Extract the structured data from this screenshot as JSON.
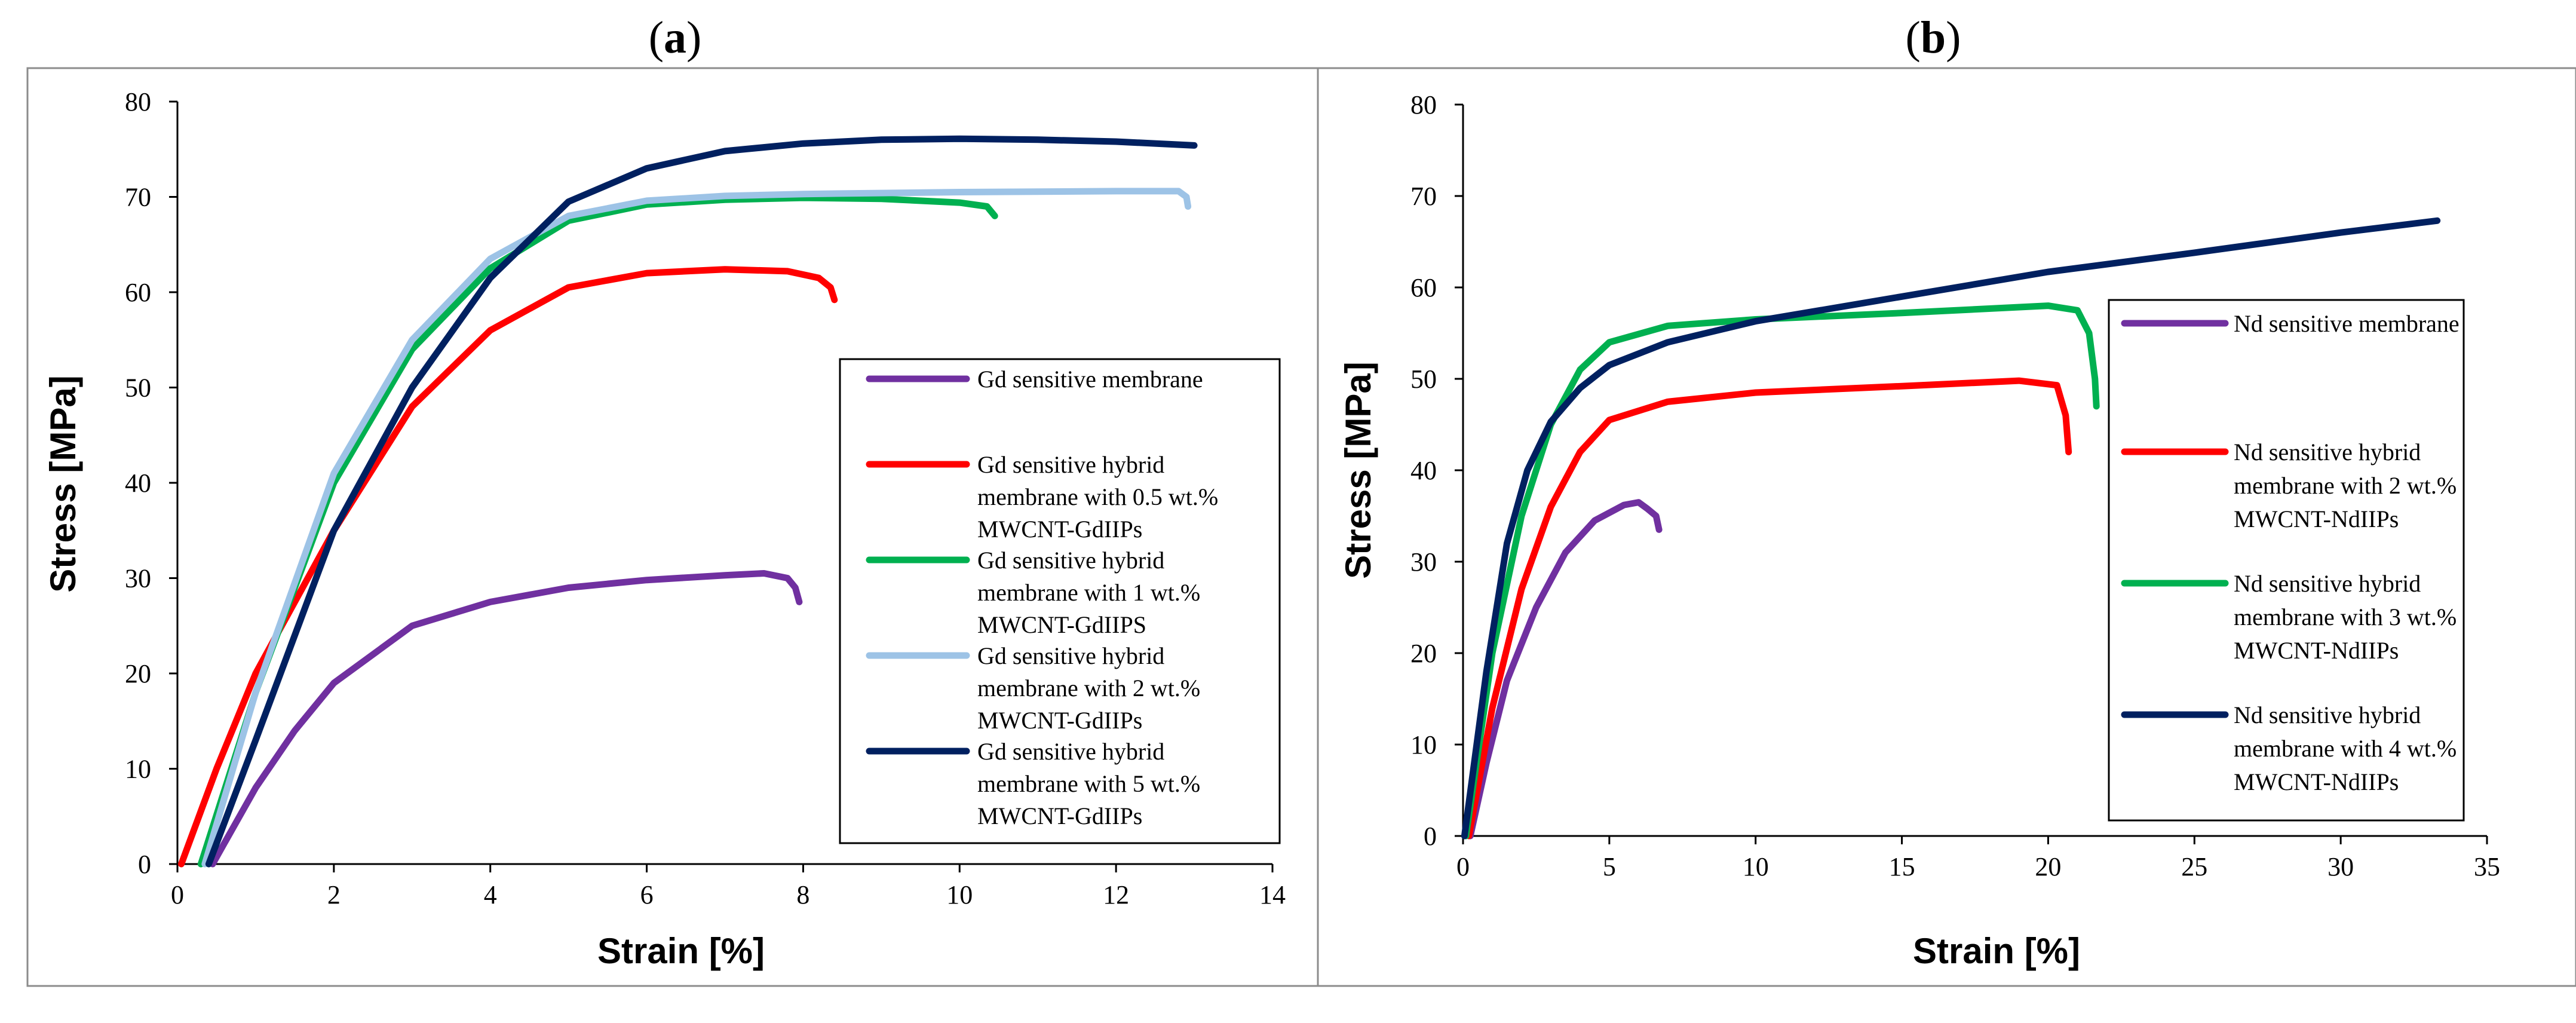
{
  "chart_data": [
    {
      "panel_label": "a",
      "type": "line",
      "xlabel": "Strain [%]",
      "ylabel": "Stress  [MPa]",
      "xlim": [
        0,
        14
      ],
      "ylim": [
        0,
        80
      ],
      "xticks": [
        0,
        2,
        4,
        6,
        8,
        10,
        12,
        14
      ],
      "yticks": [
        0,
        10,
        20,
        30,
        40,
        50,
        60,
        70,
        80
      ],
      "legend_position": "center-right",
      "series": [
        {
          "name": "Gd sensitive membrane",
          "legend_lines": [
            "Gd sensitive membrane"
          ],
          "color": "#7030a0",
          "x": [
            0.45,
            1,
            1.5,
            2,
            3,
            4,
            5,
            6,
            7,
            7.5,
            7.8,
            7.9,
            7.95
          ],
          "y": [
            0,
            8,
            14,
            19,
            25,
            27.5,
            29,
            29.8,
            30.3,
            30.5,
            30,
            29,
            27.5
          ]
        },
        {
          "name": "Gd sensitive hybrid membrane with 0.5 wt.% MWCNT-GdIIPs",
          "legend_lines": [
            "Gd sensitive hybrid",
            "membrane with 0.5 wt.%",
            "MWCNT-GdIIPs"
          ],
          "color": "#ff0000",
          "x": [
            0.05,
            0.5,
            1,
            2,
            3,
            4,
            5,
            6,
            7,
            7.8,
            8.2,
            8.35,
            8.4
          ],
          "y": [
            0,
            10,
            20,
            35,
            48,
            56,
            60.5,
            62,
            62.4,
            62.2,
            61.5,
            60.5,
            59.2
          ]
        },
        {
          "name": "Gd sensitive hybrid membrane with 1 wt.% MWCNT-GdIIPS",
          "legend_lines": [
            "Gd sensitive hybrid",
            "membrane with 1 wt.%",
            "MWCNT-GdIIPS"
          ],
          "color": "#00b050",
          "x": [
            0.3,
            1,
            2,
            3,
            4,
            5,
            6,
            7,
            8,
            9,
            10,
            10.35,
            10.45
          ],
          "y": [
            0,
            18,
            40,
            54,
            62.5,
            67.5,
            69.2,
            69.7,
            69.9,
            69.8,
            69.4,
            69,
            68
          ]
        },
        {
          "name": "Gd sensitive hybrid membrane with 2 wt.% MWCNT-GdIIPs",
          "legend_lines": [
            "Gd sensitive hybrid",
            "membrane with 2 wt.%",
            "MWCNT-GdIIPs"
          ],
          "color": "#9dc3e6",
          "x": [
            0.35,
            1,
            2,
            3,
            4,
            5,
            6,
            7,
            8,
            10,
            12,
            12.8,
            12.9,
            12.92
          ],
          "y": [
            0,
            18,
            41,
            55,
            63.5,
            68,
            69.6,
            70.1,
            70.3,
            70.5,
            70.6,
            70.6,
            70,
            69
          ]
        },
        {
          "name": "Gd sensitive hybrid membrane with 5 wt.% MWCNT-GdIIPs",
          "legend_lines": [
            "Gd sensitive hybrid",
            "membrane with 5 wt.%",
            "MWCNT-GdIIPs"
          ],
          "color": "#002060",
          "x": [
            0.4,
            1,
            2,
            3,
            4,
            5,
            6,
            7,
            8,
            9,
            10,
            11,
            12,
            13
          ],
          "y": [
            0,
            13,
            35,
            50,
            61.5,
            69.5,
            73,
            74.8,
            75.6,
            76,
            76.1,
            76,
            75.8,
            75.4
          ]
        }
      ]
    },
    {
      "panel_label": "b",
      "type": "line",
      "xlabel": "Strain [%]",
      "ylabel": "Stress  [MPa]",
      "xlim": [
        0,
        35
      ],
      "ylim": [
        0,
        80
      ],
      "xticks": [
        0,
        5,
        10,
        15,
        20,
        25,
        30,
        35
      ],
      "yticks": [
        0,
        10,
        20,
        30,
        40,
        50,
        60,
        70,
        80
      ],
      "legend_position": "center-right",
      "series": [
        {
          "name": "Nd sensitive membrane",
          "legend_lines": [
            "Nd sensitive membrane"
          ],
          "color": "#7030a0",
          "x": [
            0.25,
            0.8,
            1.5,
            2.5,
            3.5,
            4.5,
            5.5,
            6,
            6.3,
            6.6,
            6.7
          ],
          "y": [
            0,
            8,
            17,
            25,
            31,
            34.5,
            36.2,
            36.5,
            35.8,
            35,
            33.5
          ]
        },
        {
          "name": "Nd sensitive hybrid membrane with 2 wt.% MWCNT-NdIIPs",
          "legend_lines": [
            "Nd sensitive hybrid",
            "membrane with 2 wt.%",
            "MWCNT-NdIIPs"
          ],
          "color": "#ff0000",
          "x": [
            0.2,
            1,
            2,
            3,
            4,
            5,
            7,
            10,
            15,
            19,
            20.3,
            20.6,
            20.7
          ],
          "y": [
            0,
            14,
            27,
            36,
            42,
            45.5,
            47.5,
            48.5,
            49.2,
            49.8,
            49.3,
            46,
            42
          ]
        },
        {
          "name": "Nd sensitive hybrid membrane with 3 wt.% MWCNT-NdIIPs",
          "legend_lines": [
            "Nd sensitive hybrid",
            "membrane with 3 wt.%",
            "MWCNT-NdIIPs"
          ],
          "color": "#00b050",
          "x": [
            0.1,
            1,
            2,
            3,
            4,
            5,
            7,
            10,
            15,
            20,
            21,
            21.4,
            21.6,
            21.65
          ],
          "y": [
            0,
            20,
            35,
            45,
            51,
            54,
            55.8,
            56.5,
            57.2,
            58,
            57.5,
            55,
            50,
            47
          ]
        },
        {
          "name": "Nd sensitive hybrid membrane with 4 wt.% MWCNT-NdIIPs",
          "legend_lines": [
            "Nd sensitive hybrid",
            "membrane with 4 wt.%",
            "MWCNT-NdIIPs"
          ],
          "color": "#002060",
          "x": [
            0.05,
            0.8,
            1.5,
            2.2,
            3,
            4,
            5,
            7,
            10,
            15,
            20,
            25,
            30,
            33.3
          ],
          "y": [
            0,
            18,
            32,
            40,
            45.3,
            49,
            51.5,
            54,
            56.3,
            59,
            61.7,
            63.8,
            66,
            67.3
          ]
        }
      ]
    }
  ]
}
